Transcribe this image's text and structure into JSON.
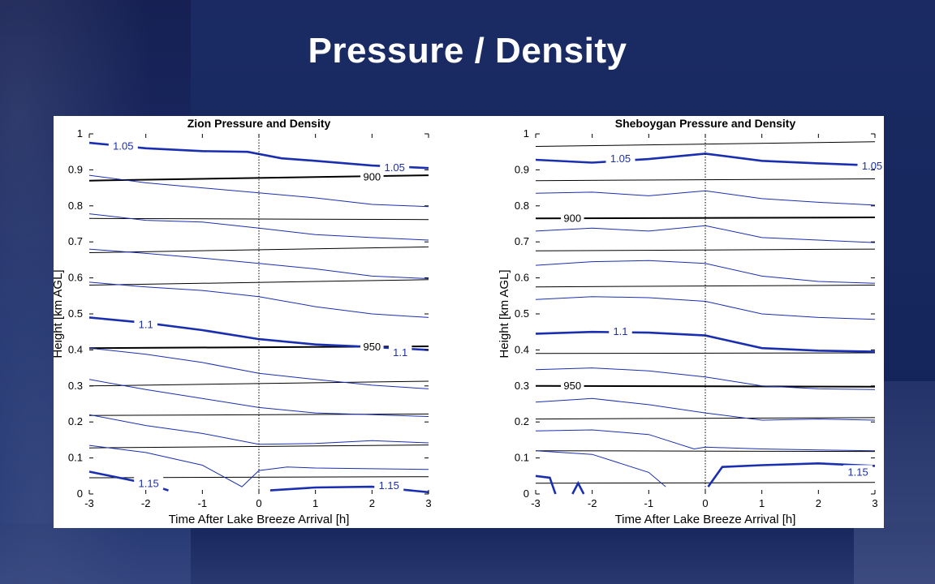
{
  "slide": {
    "title": "Pressure / Density"
  },
  "colors": {
    "density": "#1a2fb0",
    "pressure": "#000000",
    "arrival": "#000000"
  },
  "chart_data": [
    {
      "type": "line",
      "title": "Zion Pressure and Density",
      "xlabel": "Time After Lake Breeze Arrival [h]",
      "ylabel": "Height [km AGL]",
      "xlim": [
        -3,
        3
      ],
      "ylim": [
        0,
        1
      ],
      "xticks": [
        -3,
        -2,
        -1,
        0,
        1,
        2,
        3
      ],
      "xtick_labels": [
        "-3",
        "-2",
        "-1",
        "0",
        "1",
        "2",
        "3"
      ],
      "yticks": [
        0,
        0.1,
        0.2,
        0.3,
        0.4,
        0.5,
        0.6,
        0.7,
        0.8,
        0.9,
        1
      ],
      "ytick_labels": [
        "0",
        "0.1",
        "0.2",
        "0.3",
        "0.4",
        "0.5",
        "0.6",
        "0.7",
        "0.8",
        "0.9",
        "1"
      ],
      "arrival_x": 0,
      "series": [
        {
          "name": "pressure",
          "contours": [
            {
              "x": [
                -3,
                3
              ],
              "y": [
                0.87,
                0.885
              ]
            },
            {
              "x": [
                -3,
                3
              ],
              "y": [
                0.765,
                0.762
              ]
            },
            {
              "x": [
                -3,
                3
              ],
              "y": [
                0.67,
                0.686
              ]
            },
            {
              "x": [
                -3,
                3
              ],
              "y": [
                0.58,
                0.595
              ]
            },
            {
              "x": [
                -3,
                3
              ],
              "y": [
                0.405,
                0.41
              ]
            },
            {
              "x": [
                -3,
                3
              ],
              "y": [
                0.3,
                0.313
              ]
            },
            {
              "x": [
                -3,
                3
              ],
              "y": [
                0.218,
                0.222
              ]
            },
            {
              "x": [
                -3,
                3
              ],
              "y": [
                0.128,
                0.136
              ]
            },
            {
              "x": [
                -3,
                3
              ],
              "y": [
                0.045,
                0.048
              ]
            }
          ]
        },
        {
          "name": "density",
          "contours": [
            {
              "x": [
                -3,
                -2,
                -1,
                -0.2,
                0.4,
                1,
                2,
                3
              ],
              "y": [
                0.975,
                0.96,
                0.952,
                0.95,
                0.932,
                0.925,
                0.912,
                0.905
              ]
            },
            {
              "x": [
                -3,
                -2,
                -1,
                0,
                1,
                2,
                3
              ],
              "y": [
                0.885,
                0.864,
                0.85,
                0.836,
                0.822,
                0.804,
                0.798
              ]
            },
            {
              "x": [
                -3,
                -2,
                -1,
                0,
                1,
                2,
                3
              ],
              "y": [
                0.778,
                0.76,
                0.755,
                0.738,
                0.72,
                0.712,
                0.705
              ]
            },
            {
              "x": [
                -3,
                -2,
                -1,
                0,
                1,
                2,
                3
              ],
              "y": [
                0.68,
                0.668,
                0.655,
                0.64,
                0.625,
                0.605,
                0.598
              ]
            },
            {
              "x": [
                -3,
                -2,
                -1,
                0,
                1,
                2,
                3
              ],
              "y": [
                0.588,
                0.575,
                0.565,
                0.548,
                0.52,
                0.5,
                0.49
              ]
            },
            {
              "x": [
                -3,
                -2,
                -1,
                0,
                1,
                2,
                3
              ],
              "y": [
                0.49,
                0.475,
                0.455,
                0.43,
                0.415,
                0.408,
                0.4
              ]
            },
            {
              "x": [
                -3,
                -2,
                -1,
                0,
                1,
                2,
                3
              ],
              "y": [
                0.405,
                0.388,
                0.365,
                0.335,
                0.318,
                0.302,
                0.292
              ]
            },
            {
              "x": [
                -3,
                -2,
                -1,
                0,
                1,
                2,
                3
              ],
              "y": [
                0.318,
                0.29,
                0.265,
                0.24,
                0.225,
                0.22,
                0.215
              ]
            },
            {
              "x": [
                -3,
                -2,
                -1,
                0,
                1,
                2,
                3
              ],
              "y": [
                0.22,
                0.19,
                0.168,
                0.138,
                0.14,
                0.148,
                0.142
              ]
            },
            {
              "x": [
                -3,
                -2,
                -1,
                -0.3,
                0,
                0.5,
                1,
                2,
                3
              ],
              "y": [
                0.135,
                0.115,
                0.08,
                0.02,
                0.065,
                0.075,
                0.072,
                0.07,
                0.068
              ]
            },
            {
              "x": [
                -3,
                -2,
                -1.6
              ],
              "y": [
                0.062,
                0.03,
                0.01
              ]
            },
            {
              "x": [
                0.2,
                1,
                2,
                3
              ],
              "y": [
                0.01,
                0.018,
                0.02,
                0.005
              ]
            }
          ]
        }
      ],
      "annotations": [
        {
          "text": "1.05",
          "x": -2.4,
          "y": 0.965,
          "series": "density"
        },
        {
          "text": "1.05",
          "x": 2.4,
          "y": 0.905,
          "series": "density"
        },
        {
          "text": "900",
          "x": 2.0,
          "y": 0.88,
          "series": "pressure"
        },
        {
          "text": "1.1",
          "x": -2.0,
          "y": 0.47,
          "series": "density"
        },
        {
          "text": "950",
          "x": 2.0,
          "y": 0.408,
          "series": "pressure"
        },
        {
          "text": "1.1",
          "x": 2.5,
          "y": 0.392,
          "series": "density"
        },
        {
          "text": "1.15",
          "x": -1.95,
          "y": 0.028,
          "series": "density"
        },
        {
          "text": "1.15",
          "x": 2.3,
          "y": 0.022,
          "series": "density"
        }
      ]
    },
    {
      "type": "line",
      "title": "Sheboygan Pressure and Density",
      "xlabel": "Time After Lake Breeze Arrival [h]",
      "ylabel": "Height [km AGL]",
      "xlim": [
        -3,
        3
      ],
      "ylim": [
        0,
        1
      ],
      "xticks": [
        -3,
        -2,
        -1,
        0,
        1,
        2,
        3
      ],
      "xtick_labels": [
        "-3",
        "-2",
        "-1",
        "0",
        "1",
        "2",
        "3"
      ],
      "yticks": [
        0,
        0.1,
        0.2,
        0.3,
        0.4,
        0.5,
        0.6,
        0.7,
        0.8,
        0.9,
        1
      ],
      "ytick_labels": [
        "0",
        "0.1",
        "0.2",
        "0.3",
        "0.4",
        "0.5",
        "0.6",
        "0.7",
        "0.8",
        "0.9",
        "1"
      ],
      "arrival_x": 0,
      "series": [
        {
          "name": "pressure",
          "contours": [
            {
              "x": [
                -3,
                3
              ],
              "y": [
                0.965,
                0.978
              ]
            },
            {
              "x": [
                -3,
                3
              ],
              "y": [
                0.87,
                0.875
              ]
            },
            {
              "x": [
                -3,
                3
              ],
              "y": [
                0.765,
                0.768
              ]
            },
            {
              "x": [
                -3,
                3
              ],
              "y": [
                0.675,
                0.68
              ]
            },
            {
              "x": [
                -3,
                3
              ],
              "y": [
                0.575,
                0.58
              ]
            },
            {
              "x": [
                -3,
                3
              ],
              "y": [
                0.39,
                0.392
              ]
            },
            {
              "x": [
                -3,
                3
              ],
              "y": [
                0.3,
                0.298
              ]
            },
            {
              "x": [
                -3,
                3
              ],
              "y": [
                0.208,
                0.212
              ]
            },
            {
              "x": [
                -3,
                3
              ],
              "y": [
                0.12,
                0.118
              ]
            },
            {
              "x": [
                -3,
                3
              ],
              "y": [
                0.03,
                0.032
              ]
            }
          ]
        },
        {
          "name": "density",
          "contours": [
            {
              "x": [
                -3,
                -2,
                -1,
                0,
                1,
                2,
                3
              ],
              "y": [
                0.928,
                0.92,
                0.93,
                0.945,
                0.925,
                0.918,
                0.912
              ]
            },
            {
              "x": [
                -3,
                -2,
                -1,
                0,
                1,
                2,
                3
              ],
              "y": [
                0.835,
                0.838,
                0.828,
                0.842,
                0.82,
                0.81,
                0.802
              ]
            },
            {
              "x": [
                -3,
                -2,
                -1,
                0,
                1,
                2,
                3
              ],
              "y": [
                0.73,
                0.738,
                0.73,
                0.745,
                0.712,
                0.705,
                0.698
              ]
            },
            {
              "x": [
                -3,
                -2,
                -1,
                0,
                1,
                2,
                3
              ],
              "y": [
                0.635,
                0.645,
                0.648,
                0.64,
                0.605,
                0.59,
                0.585
              ]
            },
            {
              "x": [
                -3,
                -2,
                -1,
                0,
                1,
                2,
                3
              ],
              "y": [
                0.54,
                0.548,
                0.545,
                0.535,
                0.5,
                0.49,
                0.485
              ]
            },
            {
              "x": [
                -3,
                -2,
                -1,
                0,
                1,
                2,
                3
              ],
              "y": [
                0.445,
                0.45,
                0.448,
                0.44,
                0.405,
                0.398,
                0.395
              ]
            },
            {
              "x": [
                -3,
                -2,
                -1,
                0,
                1,
                2,
                3
              ],
              "y": [
                0.345,
                0.35,
                0.342,
                0.325,
                0.3,
                0.292,
                0.29
              ]
            },
            {
              "x": [
                -3,
                -2,
                -1,
                0,
                1,
                2,
                3
              ],
              "y": [
                0.255,
                0.265,
                0.248,
                0.225,
                0.205,
                0.208,
                0.205
              ]
            },
            {
              "x": [
                -3,
                -2,
                -1,
                -0.2,
                0,
                1,
                2,
                3
              ],
              "y": [
                0.175,
                0.178,
                0.165,
                0.125,
                0.13,
                0.125,
                0.122,
                0.12
              ]
            },
            {
              "x": [
                -3,
                -2,
                -1,
                -0.7
              ],
              "y": [
                0.12,
                0.11,
                0.06,
                0.02
              ]
            },
            {
              "x": [
                0.05,
                0.3,
                1,
                2,
                3
              ],
              "y": [
                0.02,
                0.075,
                0.08,
                0.085,
                0.078
              ]
            },
            {
              "x": [
                -3,
                -2.75,
                -2.65
              ],
              "y": [
                0.05,
                0.045,
                0.0
              ]
            },
            {
              "x": [
                -2.35,
                -2.25,
                -2.15
              ],
              "y": [
                0.0,
                0.03,
                0.0
              ]
            }
          ]
        }
      ],
      "annotations": [
        {
          "text": "1.05",
          "x": -1.5,
          "y": 0.93,
          "series": "density"
        },
        {
          "text": "1.05",
          "x": 2.95,
          "y": 0.91,
          "series": "density"
        },
        {
          "text": "900",
          "x": -2.35,
          "y": 0.765,
          "series": "pressure"
        },
        {
          "text": "1.1",
          "x": -1.5,
          "y": 0.45,
          "series": "density"
        },
        {
          "text": "950",
          "x": -2.35,
          "y": 0.3,
          "series": "pressure"
        },
        {
          "text": "1.15",
          "x": 2.7,
          "y": 0.06,
          "series": "density"
        }
      ]
    }
  ]
}
